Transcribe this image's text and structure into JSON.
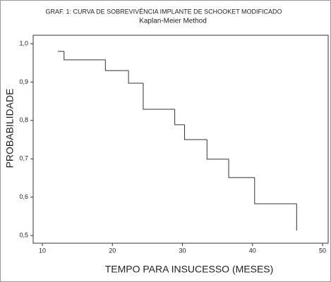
{
  "chart_data": {
    "type": "step",
    "title": "GRAF. 1: CURVA DE SOBREVIVÊNCIA IMPLANTE DE SCHOOKET MODIFICADO",
    "subtitle": "Kaplan-Meier Method",
    "x_label": "TEMPO PARA INSUCESSO (MESES)",
    "y_label": "PROBABILIDADE",
    "x": [
      12.2,
      13.1,
      19.0,
      22.3,
      24.4,
      28.9,
      30.3,
      33.5,
      36.6,
      40.3,
      46.3
    ],
    "values": [
      0.98,
      0.958,
      0.93,
      0.897,
      0.829,
      0.789,
      0.75,
      0.699,
      0.651,
      0.583,
      0.513
    ],
    "color": "#333333",
    "xlim": [
      8.69,
      50.8
    ],
    "ylim": [
      0.48,
      1.022
    ],
    "xticks": [
      10,
      20,
      30,
      40,
      50
    ],
    "yticks": [
      {
        "value": 0.5,
        "label": "0,5"
      },
      {
        "value": 0.6,
        "label": "0,6"
      },
      {
        "value": 0.7,
        "label": "0,7"
      },
      {
        "value": 0.8,
        "label": "0,8"
      },
      {
        "value": 0.9,
        "label": "0,9"
      },
      {
        "value": 1.0,
        "label": "1,0"
      }
    ]
  }
}
